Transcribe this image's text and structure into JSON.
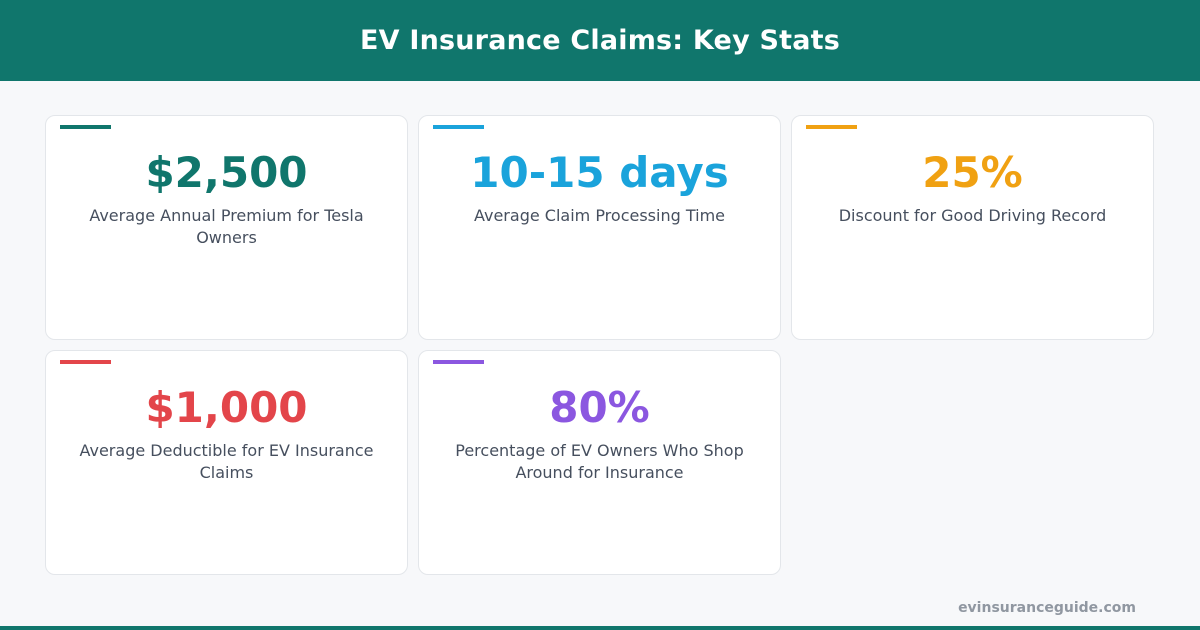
{
  "header": {
    "title": "EV Insurance Claims: Key Stats"
  },
  "stats": [
    {
      "value": "$2,500",
      "label": "Average Annual Premium for Tesla Owners",
      "color": "#10766c"
    },
    {
      "value": "10-15 days",
      "label": "Average Claim Processing Time",
      "color": "#1aa3db"
    },
    {
      "value": "25%",
      "label": "Discount for Good Driving Record",
      "color": "#f0a112"
    },
    {
      "value": "$1,000",
      "label": "Average Deductible for EV Insurance Claims",
      "color": "#e3454a"
    },
    {
      "value": "80%",
      "label": "Percentage of EV Owners Who Shop Around for Insurance",
      "color": "#8b57e0"
    }
  ],
  "footer": {
    "site": "evinsuranceguide.com"
  },
  "colors": {
    "header_bg": "#10766c",
    "page_bg": "#f7f8fa"
  }
}
